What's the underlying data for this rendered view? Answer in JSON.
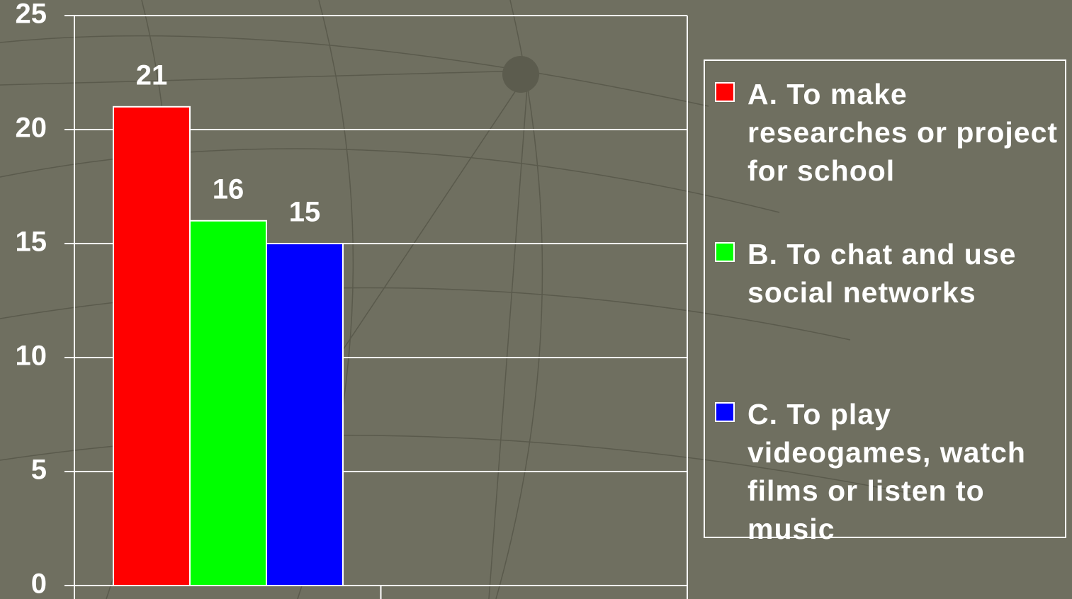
{
  "chart_data": {
    "type": "bar",
    "categories": [
      null
    ],
    "series": [
      {
        "name": "A. To make researches or project for school",
        "color": "#ff0000",
        "values": [
          21
        ]
      },
      {
        "name": "B. To chat and use social networks",
        "color": "#00ff00",
        "values": [
          16
        ]
      },
      {
        "name": "C. To play videogames, watch films or listen to music",
        "color": "#0000ff",
        "values": [
          15
        ]
      }
    ],
    "ylim": [
      0,
      25
    ],
    "yticks": [
      0,
      5,
      10,
      15,
      20,
      25
    ],
    "grid": true,
    "legend": "right"
  }
}
